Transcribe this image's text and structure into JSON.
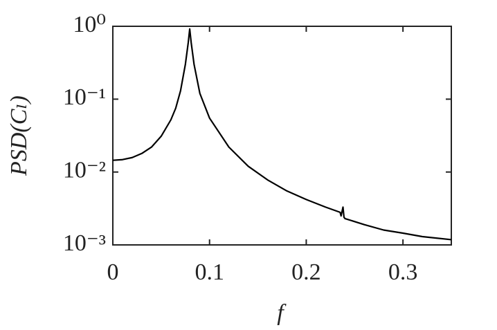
{
  "chart_data": {
    "type": "line",
    "log_y": true,
    "color": "#000000",
    "x_label": "f",
    "y_label": "PSD(Cₗ)",
    "x": [
      0,
      0.01,
      0.02,
      0.03,
      0.04,
      0.05,
      0.06,
      0.065,
      0.07,
      0.075,
      0.078,
      0.0795,
      0.081,
      0.084,
      0.09,
      0.1,
      0.12,
      0.14,
      0.16,
      0.18,
      0.2,
      0.22,
      0.235,
      0.236,
      0.238,
      0.239,
      0.24,
      0.26,
      0.28,
      0.3,
      0.32,
      0.35
    ],
    "values": [
      0.0145,
      0.0148,
      0.0158,
      0.018,
      0.022,
      0.031,
      0.052,
      0.075,
      0.13,
      0.3,
      0.6,
      0.92,
      0.6,
      0.3,
      0.12,
      0.055,
      0.022,
      0.012,
      0.0078,
      0.0055,
      0.0042,
      0.0033,
      0.0028,
      0.0025,
      0.0033,
      0.0024,
      0.0023,
      0.0019,
      0.0016,
      0.00145,
      0.0013,
      0.00118
    ],
    "xlim": [
      0,
      0.35
    ],
    "xticks": [
      0,
      0.1,
      0.2,
      0.3
    ],
    "ylim": [
      0.001,
      1
    ],
    "yticks": [
      {
        "value": 0.001,
        "label": "10⁻³"
      },
      {
        "value": 0.01,
        "label": "10⁻²"
      },
      {
        "value": 0.1,
        "label": "10⁻¹"
      },
      {
        "value": 1,
        "label": "10⁰"
      }
    ]
  }
}
